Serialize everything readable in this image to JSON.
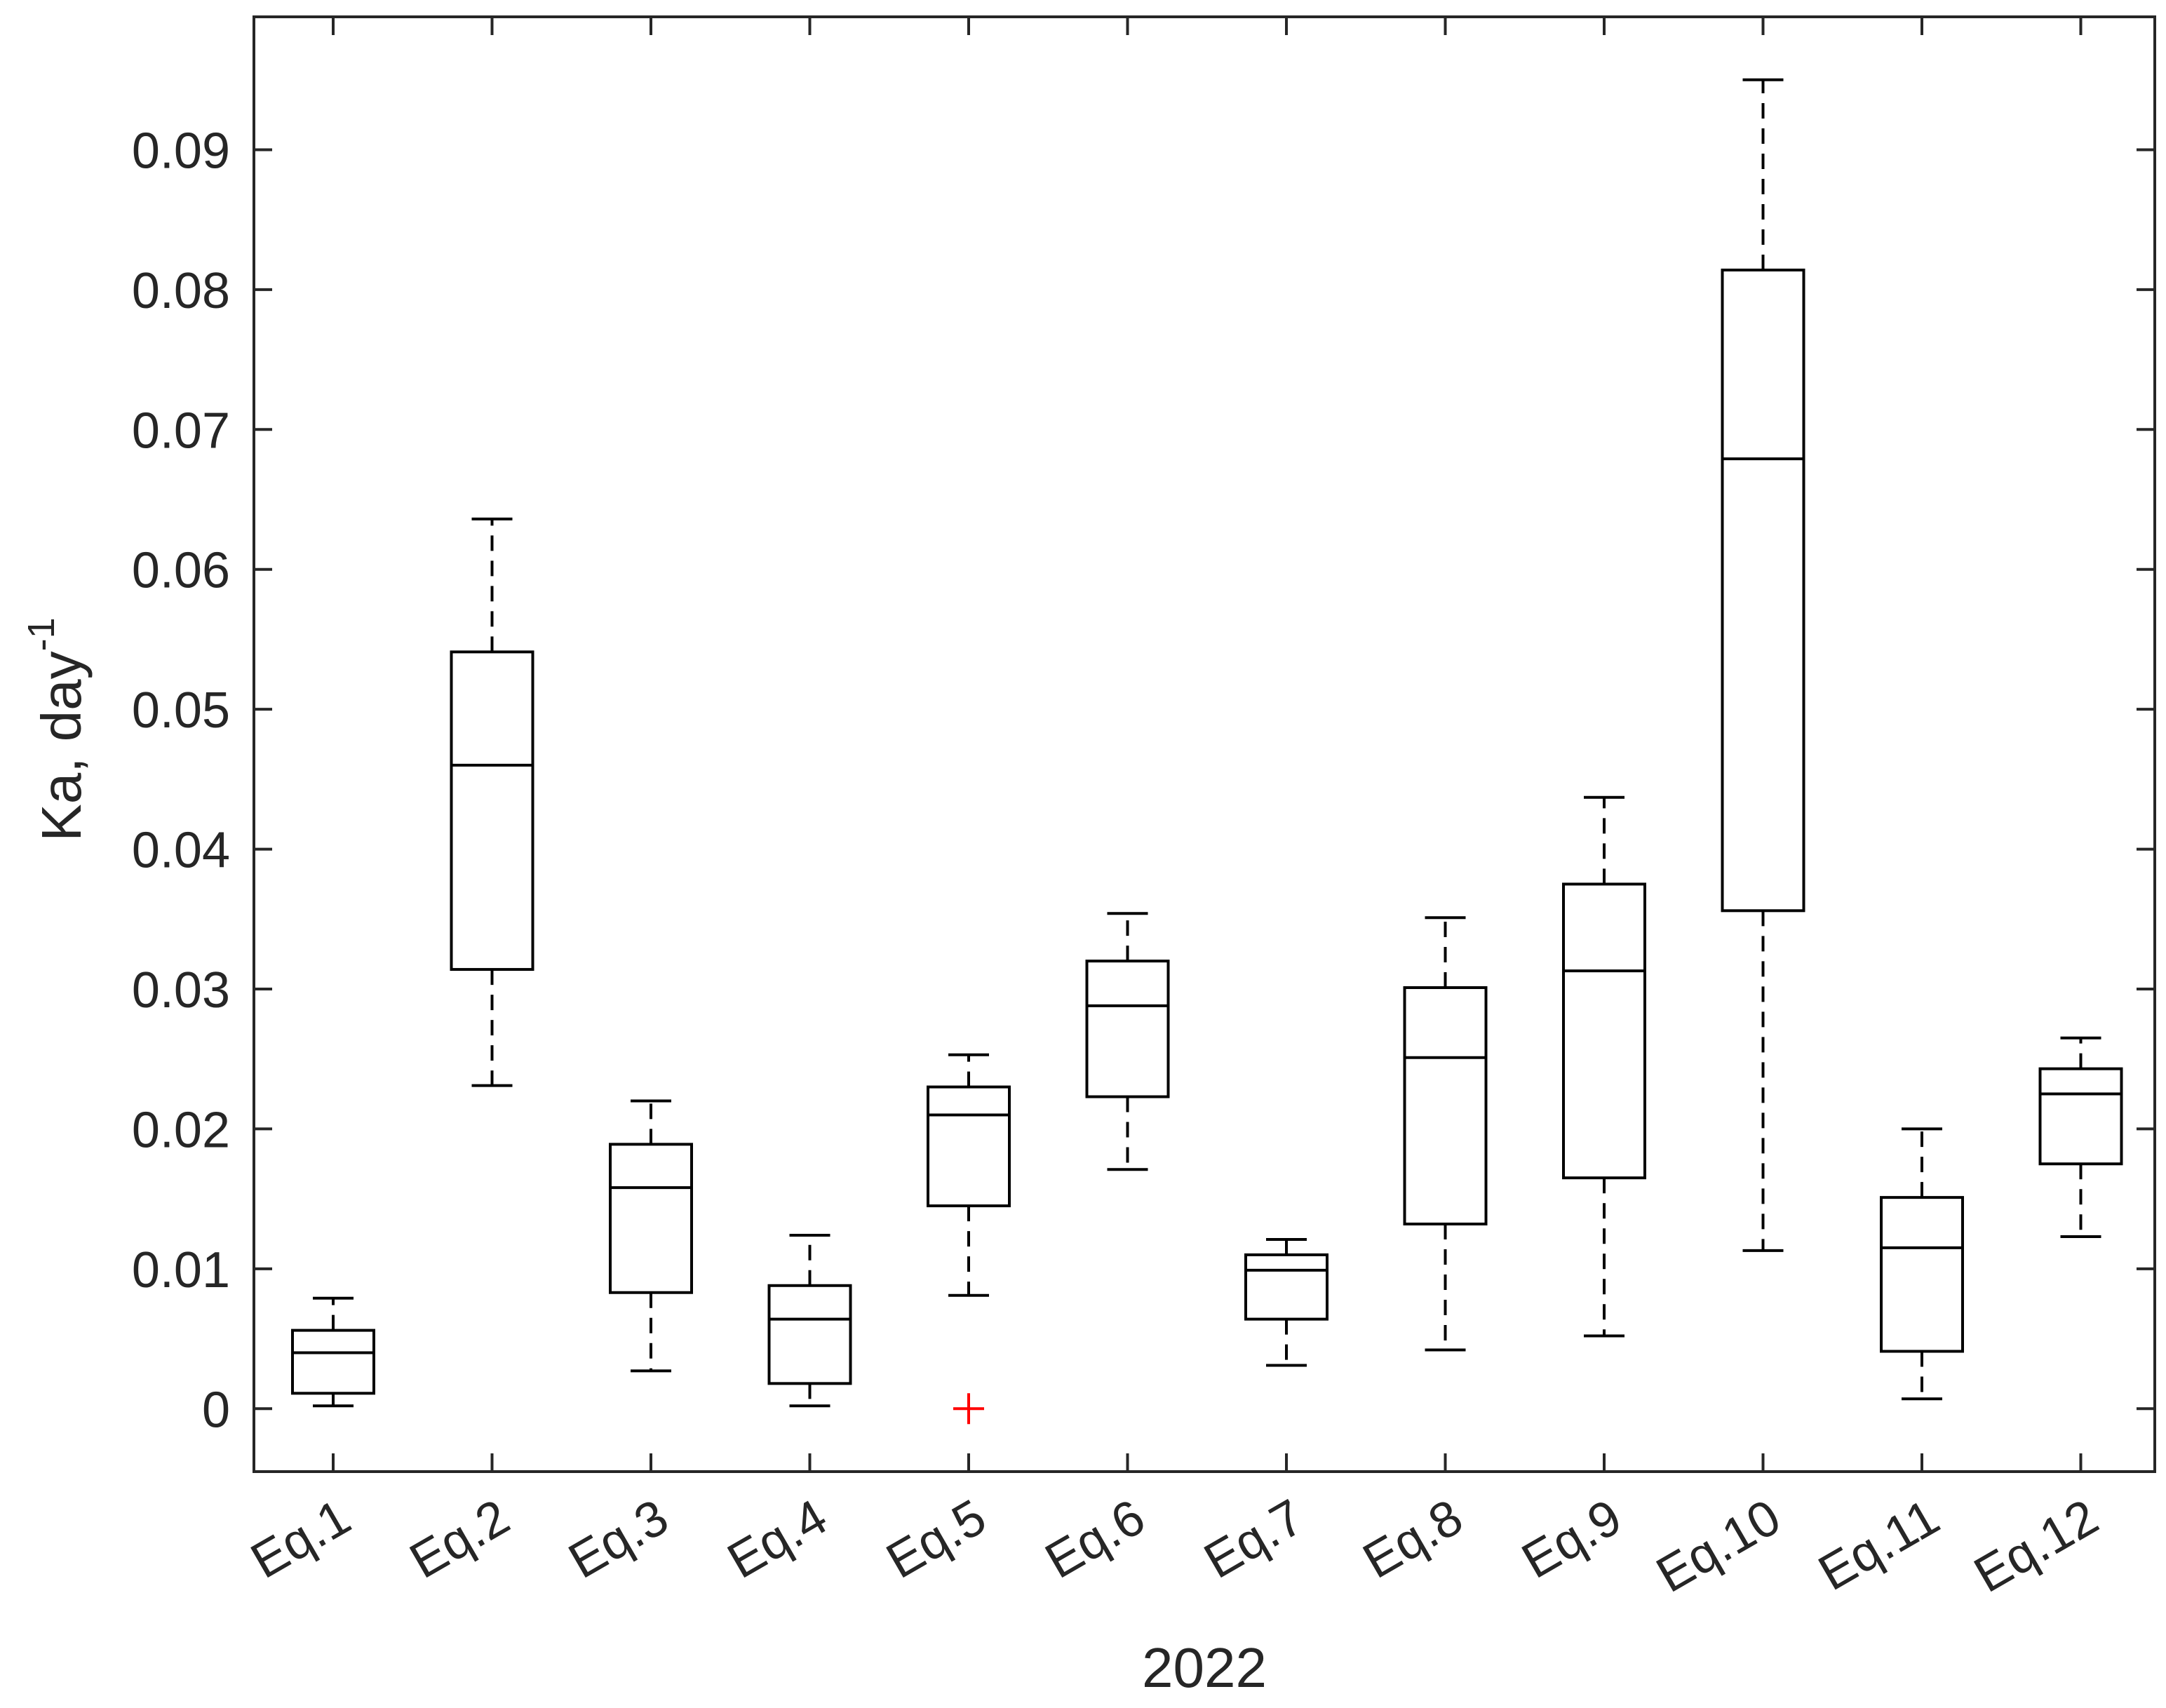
{
  "chart_data": {
    "type": "box",
    "xlabel": "2022",
    "ylabel": "Ka, day",
    "ylabel_sup": "-1",
    "ylim": [
      -0.0045,
      0.0995
    ],
    "yticks": [
      0,
      0.01,
      0.02,
      0.03,
      0.04,
      0.05,
      0.06,
      0.07,
      0.08,
      0.09
    ],
    "ytick_labels": [
      "0",
      "0.01",
      "0.02",
      "0.03",
      "0.04",
      "0.05",
      "0.06",
      "0.07",
      "0.08",
      "0.09"
    ],
    "categories": [
      "Eq.1",
      "Eq.2",
      "Eq.3",
      "Eq.4",
      "Eq.5",
      "Eq.6",
      "Eq.7",
      "Eq.8",
      "Eq.9",
      "Eq.10",
      "Eq.11",
      "Eq.12"
    ],
    "boxes": [
      {
        "min": 0.0002,
        "q1": 0.0011,
        "median": 0.004,
        "q3": 0.0056,
        "max": 0.0079,
        "outliers": []
      },
      {
        "min": 0.0231,
        "q1": 0.0314,
        "median": 0.046,
        "q3": 0.0541,
        "max": 0.0636,
        "outliers": []
      },
      {
        "min": 0.0027,
        "q1": 0.0083,
        "median": 0.0158,
        "q3": 0.0189,
        "max": 0.022,
        "outliers": []
      },
      {
        "min": 0.0002,
        "q1": 0.0018,
        "median": 0.0064,
        "q3": 0.0088,
        "max": 0.0124,
        "outliers": []
      },
      {
        "min": 0.0081,
        "q1": 0.0145,
        "median": 0.021,
        "q3": 0.023,
        "max": 0.0253,
        "outliers": [
          0.0
        ]
      },
      {
        "min": 0.0171,
        "q1": 0.0223,
        "median": 0.0288,
        "q3": 0.032,
        "max": 0.0354,
        "outliers": []
      },
      {
        "min": 0.0031,
        "q1": 0.0064,
        "median": 0.0099,
        "q3": 0.011,
        "max": 0.0121,
        "outliers": []
      },
      {
        "min": 0.0042,
        "q1": 0.0132,
        "median": 0.0251,
        "q3": 0.0301,
        "max": 0.0351,
        "outliers": []
      },
      {
        "min": 0.0052,
        "q1": 0.0165,
        "median": 0.0313,
        "q3": 0.0375,
        "max": 0.0437,
        "outliers": []
      },
      {
        "min": 0.0113,
        "q1": 0.0356,
        "median": 0.0679,
        "q3": 0.0814,
        "max": 0.095,
        "outliers": []
      },
      {
        "min": 0.0007,
        "q1": 0.0041,
        "median": 0.0115,
        "q3": 0.0151,
        "max": 0.02,
        "outliers": []
      },
      {
        "min": 0.0123,
        "q1": 0.0175,
        "median": 0.0225,
        "q3": 0.0243,
        "max": 0.0265,
        "outliers": []
      }
    ],
    "grid": false,
    "box_color": "#000000",
    "outlier_color": "#ff0000",
    "outlier_marker": "+"
  }
}
